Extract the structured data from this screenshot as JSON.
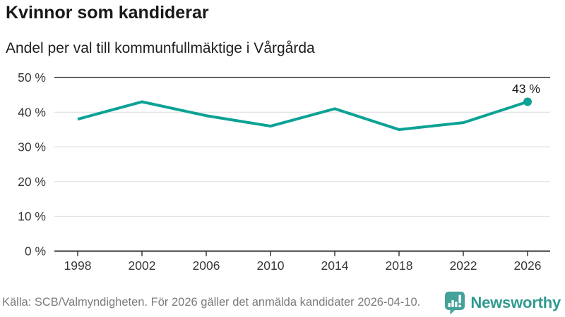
{
  "header": {
    "title": "Kvinnor som kandiderar",
    "subtitle": "Andel per val till kommunfullmäktige i Vårgårda"
  },
  "chart_data": {
    "type": "line",
    "x": [
      1998,
      2002,
      2006,
      2010,
      2014,
      2018,
      2022,
      2026
    ],
    "xtick_labels": [
      "1998",
      "2002",
      "2006",
      "2010",
      "2014",
      "2018",
      "2022",
      "2026"
    ],
    "values": [
      38,
      43,
      39,
      36,
      41,
      35,
      37,
      43
    ],
    "unit": "%",
    "ylim": [
      0,
      50
    ],
    "ytick_values": [
      0,
      10,
      20,
      30,
      40,
      50
    ],
    "ytick_labels": [
      "0 %",
      "10 %",
      "20 %",
      "30 %",
      "40 %",
      "50 %"
    ],
    "end_point_label": "43 %",
    "grid": true,
    "legend_position": "none",
    "line_color": "#0ca295",
    "gridline_color": "#dadada",
    "top_gridline_color": "#636363",
    "axis_color": "#383838",
    "label_color": "#383838"
  },
  "footer": {
    "source": "Källa: SCB/Valmyndigheten. För 2026 gäller det anmälda kandidater 2026-04-10.",
    "brand": "Newsworthy",
    "brand_color": "#2f9a90",
    "brand_icon_color": "#43a29a"
  }
}
